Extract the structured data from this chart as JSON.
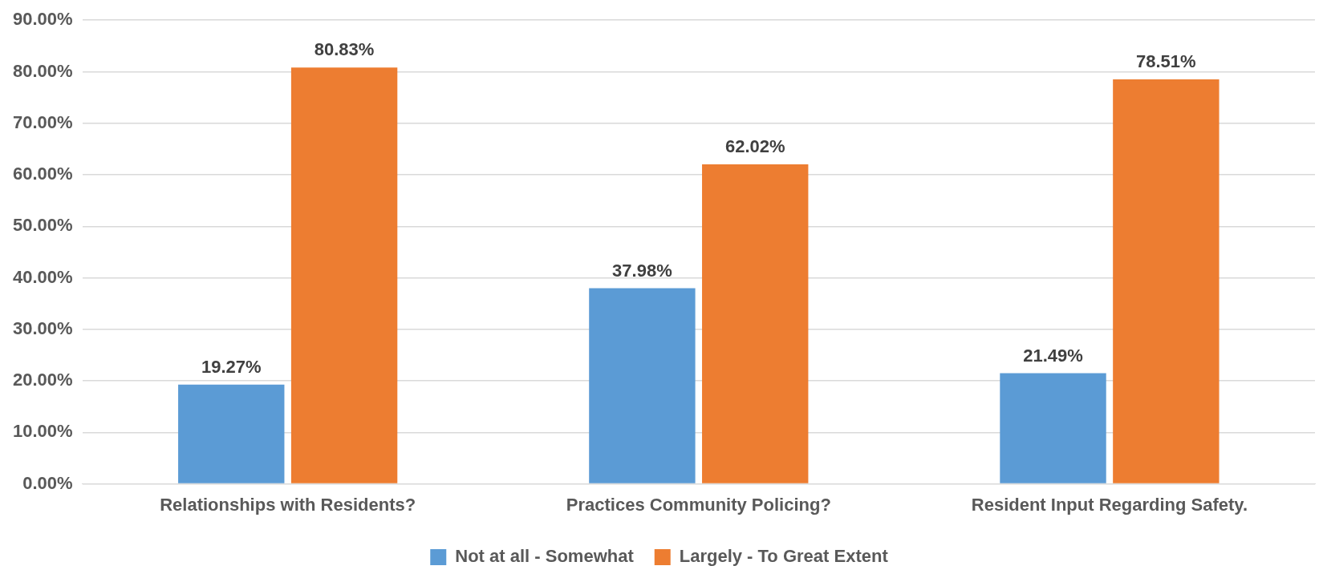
{
  "chart_data": {
    "type": "bar",
    "categories": [
      "Relationships with Residents?",
      "Practices Community Policing?",
      "Resident Input Regarding Safety."
    ],
    "series": [
      {
        "name": "Not at all - Somewhat",
        "color": "#5b9bd5",
        "values": [
          19.27,
          37.98,
          21.49
        ],
        "value_labels": [
          "19.27%",
          "37.98%",
          "21.49%"
        ]
      },
      {
        "name": "Largely - To Great Extent",
        "color": "#ed7d31",
        "values": [
          80.83,
          62.02,
          78.51
        ],
        "value_labels": [
          "80.83%",
          "62.02%",
          "78.51%"
        ]
      }
    ],
    "ylim": [
      0,
      90
    ],
    "yticks": [
      {
        "value": 0,
        "label": "0.00%"
      },
      {
        "value": 10,
        "label": "10.00%"
      },
      {
        "value": 20,
        "label": "20.00%"
      },
      {
        "value": 30,
        "label": "30.00%"
      },
      {
        "value": 40,
        "label": "40.00%"
      },
      {
        "value": 50,
        "label": "50.00%"
      },
      {
        "value": 60,
        "label": "60.00%"
      },
      {
        "value": 70,
        "label": "70.00%"
      },
      {
        "value": 80,
        "label": "80.00%"
      },
      {
        "value": 90,
        "label": "90.00%"
      }
    ],
    "grid": "y",
    "legend": "bottom"
  }
}
